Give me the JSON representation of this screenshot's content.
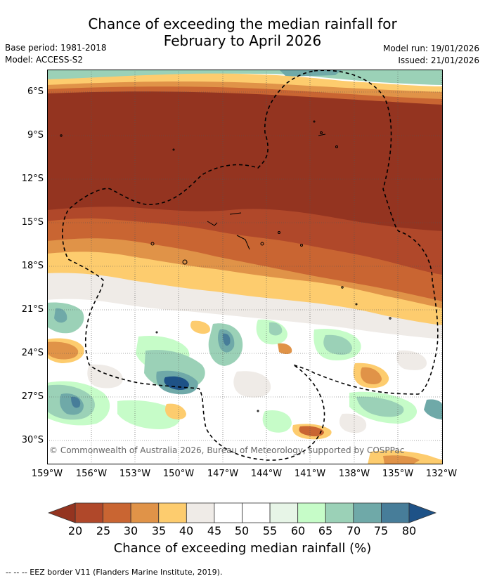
{
  "header": {
    "title_line1": "Chance of exceeding the median rainfall for",
    "title_line2": "February to April 2026",
    "base_period": "Base period: 1981-2018",
    "model": "Model: ACCESS-S2",
    "model_run": "Model run: 19/01/2026",
    "issued": "Issued: 21/01/2026"
  },
  "map": {
    "lat_labels": [
      "6°S",
      "9°S",
      "12°S",
      "15°S",
      "18°S",
      "21°S",
      "24°S",
      "27°S",
      "30°S"
    ],
    "lon_labels": [
      "159°W",
      "156°W",
      "153°W",
      "150°W",
      "147°W",
      "144°W",
      "141°W",
      "138°W",
      "135°W",
      "132°W"
    ],
    "copyright": "© Commonwealth of Australia 2026, Bureau of Meteorology, supported by COSPPac"
  },
  "colorbar": {
    "title": "Chance of exceeding median rainfall (%)",
    "labels": [
      "20",
      "25",
      "30",
      "35",
      "40",
      "45",
      "50",
      "55",
      "60",
      "65",
      "70",
      "75",
      "80"
    ],
    "colors": [
      "#b0482a",
      "#c96532",
      "#e09348",
      "#fdcc6e",
      "#efebe7",
      "#ffffff",
      "#ffffff",
      "#e7f5e7",
      "#c6fcc8",
      "#9bd1b7",
      "#6fa9a8",
      "#477d99"
    ],
    "low_extend_color": "#943420",
    "high_extend_color": "#1e5287"
  },
  "footnote": "-- -- -- EEZ border V11 (Flanders Marine Institute, 2019)."
}
